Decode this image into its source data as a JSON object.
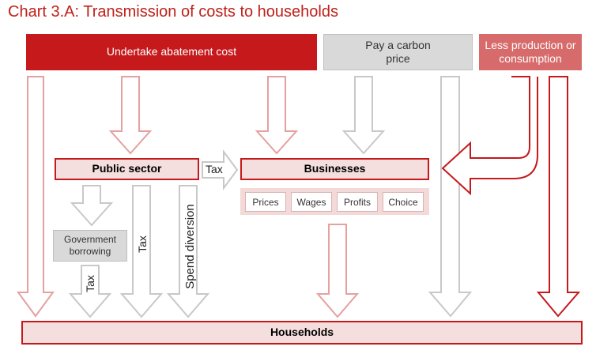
{
  "title": "Chart 3.A: Transmission of costs to households",
  "headers": {
    "abatement": "Undertake abatement cost",
    "carbon_price": "Pay a carbon price",
    "less_production": "Less production or consumption"
  },
  "nodes": {
    "public_sector": "Public sector",
    "businesses": "Businesses",
    "government_borrowing": "Government borrowing",
    "households": "Households"
  },
  "business_channels": [
    "Prices",
    "Wages",
    "Profits",
    "Choice"
  ],
  "arrow_labels": {
    "tax_public_to_business": "Tax",
    "tax_borrowing": "Tax",
    "tax_public": "Tax",
    "spend_diversion": "Spend diversion"
  },
  "colors": {
    "red": "#c5191c",
    "light_red": "#d76b6b",
    "pink_fill": "#f5dede",
    "grey": "#d9d9d9"
  }
}
